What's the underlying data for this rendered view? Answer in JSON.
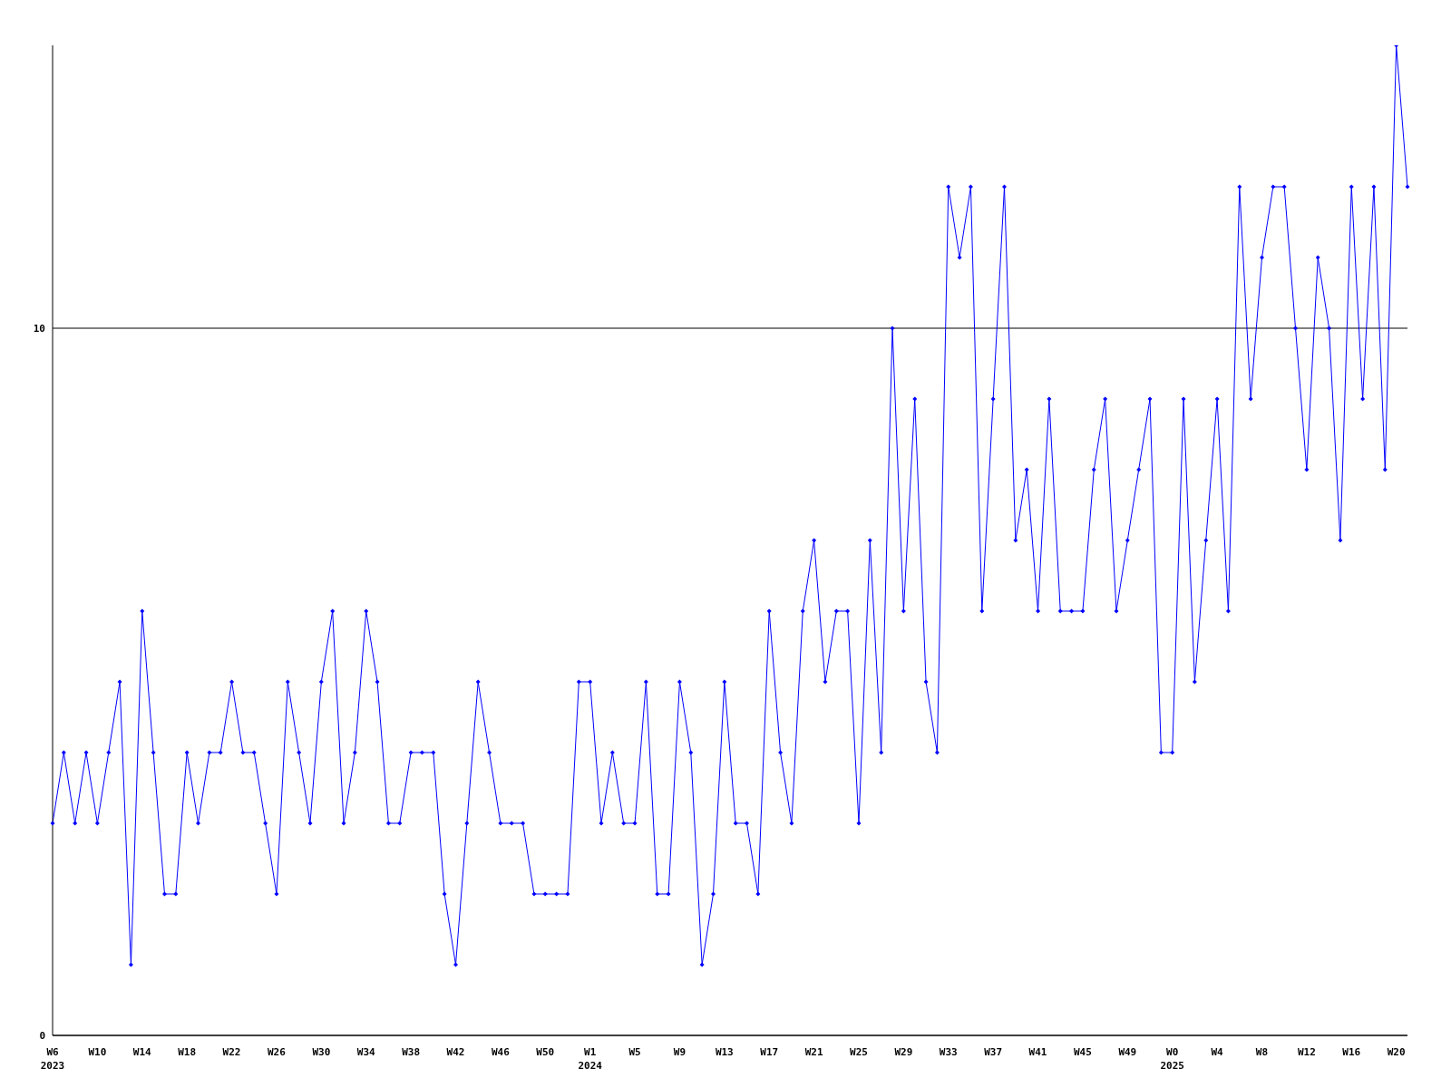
{
  "chart_data": {
    "type": "line",
    "categories": [
      "W6\n2023",
      null,
      null,
      null,
      "W10",
      null,
      null,
      null,
      "W14",
      null,
      null,
      null,
      "W18",
      null,
      null,
      null,
      "W22",
      null,
      null,
      null,
      "W26",
      null,
      null,
      null,
      "W30",
      null,
      null,
      null,
      "W34",
      null,
      null,
      null,
      "W38",
      null,
      null,
      null,
      "W42",
      null,
      null,
      null,
      "W46",
      null,
      null,
      null,
      "W50",
      null,
      null,
      null,
      "W1\n2024",
      null,
      null,
      null,
      "W5",
      null,
      null,
      null,
      "W9",
      null,
      null,
      null,
      "W13",
      null,
      null,
      null,
      "W17",
      null,
      null,
      null,
      "W21",
      null,
      null,
      null,
      "W25",
      null,
      null,
      null,
      "W29",
      null,
      null,
      null,
      "W33",
      null,
      null,
      null,
      "W37",
      null,
      null,
      null,
      "W41",
      null,
      null,
      null,
      "W45",
      null,
      null,
      null,
      "W49",
      null,
      null,
      null,
      "W0\n2025",
      null,
      null,
      null,
      "W4",
      null,
      null,
      null,
      "W8",
      null,
      null,
      null,
      "W12",
      null,
      null,
      null,
      "W16",
      null,
      null,
      null,
      "W20",
      null
    ],
    "series": [
      {
        "color": "#0000ff",
        "values": [
          3,
          4,
          3,
          4,
          3,
          4,
          5,
          1,
          6,
          4,
          2,
          2,
          4,
          3,
          4,
          4,
          5,
          4,
          4,
          3,
          2,
          5,
          4,
          3,
          5,
          6,
          3,
          4,
          6,
          5,
          3,
          3,
          4,
          4,
          4,
          2,
          1,
          3,
          5,
          4,
          3,
          3,
          3,
          2,
          2,
          2,
          2,
          5,
          5,
          3,
          4,
          3,
          3,
          5,
          2,
          2,
          5,
          4,
          1,
          2,
          5,
          3,
          3,
          2,
          6,
          4,
          3,
          6,
          7,
          5,
          6,
          6,
          3,
          7,
          4,
          10,
          6,
          9,
          5,
          4,
          12,
          11,
          12,
          6,
          9,
          12,
          7,
          8,
          6,
          9,
          6,
          6,
          6,
          8,
          9,
          6,
          7,
          8,
          9,
          4,
          4,
          9,
          5,
          7,
          9,
          6,
          12,
          9,
          11,
          12,
          12,
          10,
          8,
          11,
          10,
          7,
          12,
          9,
          12,
          8,
          14,
          12
        ]
      }
    ],
    "ylim": [
      0,
      14
    ],
    "yticks": [
      0,
      10
    ],
    "grid": "y",
    "marker": "diamond",
    "line_style": "solid"
  }
}
